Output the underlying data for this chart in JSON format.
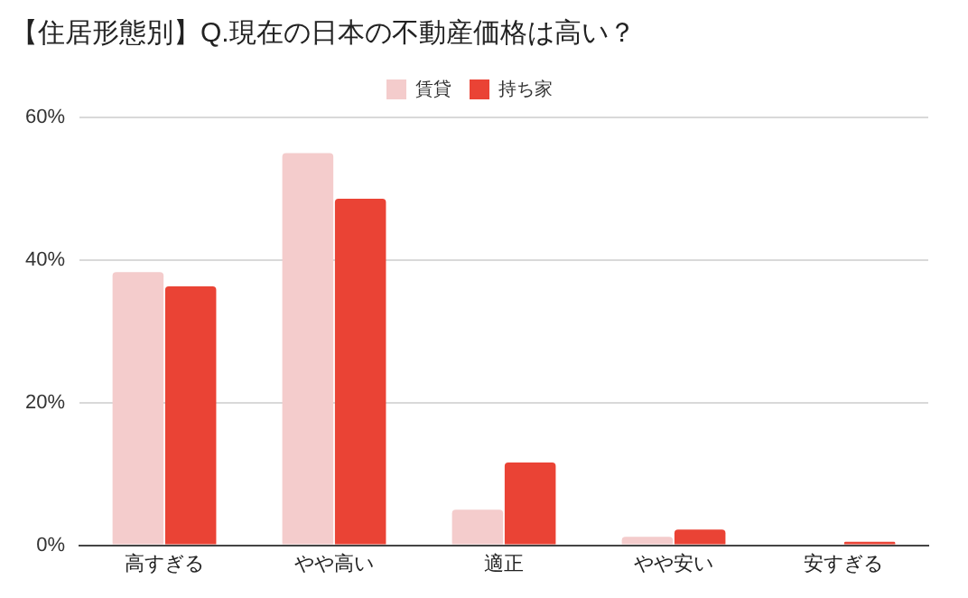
{
  "chart_data": {
    "type": "bar",
    "title": "【住居形態別】Q.現在の日本の不動産価格は高い？",
    "categories": [
      "高すぎる",
      "やや高い",
      "適正",
      "やや安い",
      "安すぎる"
    ],
    "series": [
      {
        "name": "賃貸",
        "color": "#f4cccc",
        "values": [
          38.3,
          55,
          5,
          1.2,
          0
        ]
      },
      {
        "name": "持ち家",
        "color": "#ea4335",
        "values": [
          36.3,
          48.6,
          11.6,
          2.2,
          0.5
        ]
      }
    ],
    "ylim": [
      0,
      60
    ],
    "yticks": [
      {
        "value": 0,
        "label": "0%"
      },
      {
        "value": 20,
        "label": "20%"
      },
      {
        "value": 40,
        "label": "40%"
      },
      {
        "value": 60,
        "label": "60%"
      }
    ],
    "grid": "y",
    "legend": "top"
  }
}
